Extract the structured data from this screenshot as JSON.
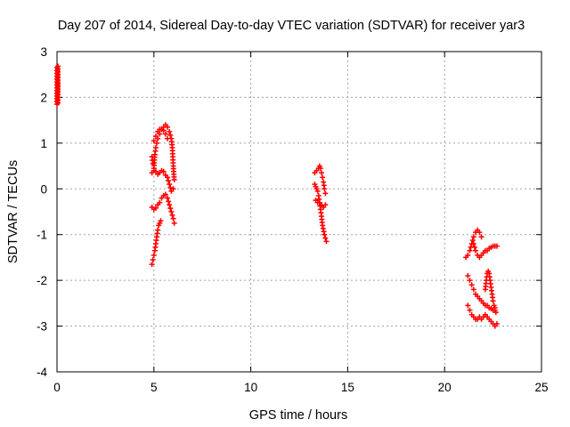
{
  "chart_data": {
    "type": "scatter",
    "title": "Day 207 of 2014, Sidereal Day-to-day VTEC variation (SDTVAR) for receiver yar3",
    "xlabel": "GPS time / hours",
    "ylabel": "SDTVAR / TECUs",
    "xlim": [
      0,
      25
    ],
    "ylim": [
      -4,
      3
    ],
    "xticks": [
      "0",
      "5",
      "10",
      "15",
      "20",
      "25"
    ],
    "yticks": [
      "-4",
      "-3",
      "-2",
      "-1",
      "0",
      "1",
      "2",
      "3"
    ],
    "grid": true,
    "marker": "+",
    "series_color": "#ff0000",
    "series": [
      {
        "x": [
          0.0,
          0.0,
          0.0,
          0.05,
          0.05,
          0.05
        ],
        "y": [
          2.65,
          2.15,
          1.85,
          2.68,
          2.18,
          1.88
        ]
      },
      {
        "x": [
          4.9,
          4.95,
          5.0,
          5.05,
          5.1,
          5.15,
          5.2,
          5.25,
          5.3,
          5.35
        ],
        "y": [
          -1.65,
          -1.55,
          -1.45,
          -1.35,
          -1.2,
          -1.05,
          -0.9,
          -0.8,
          -0.75,
          -0.7
        ]
      },
      {
        "x": [
          4.9,
          5.0,
          5.1,
          5.2,
          5.3,
          5.4,
          5.5,
          5.6,
          5.7,
          5.8,
          5.9,
          6.0,
          6.05
        ],
        "y": [
          -0.4,
          -0.45,
          -0.42,
          -0.35,
          -0.3,
          -0.2,
          -0.15,
          -0.12,
          -0.2,
          -0.35,
          -0.5,
          -0.65,
          -0.75
        ]
      },
      {
        "x": [
          4.9,
          5.0,
          5.1,
          5.2,
          5.3,
          5.4,
          5.5,
          5.6,
          5.7,
          5.8,
          5.9,
          6.0
        ],
        "y": [
          0.35,
          0.4,
          0.38,
          0.32,
          0.35,
          0.4,
          0.38,
          0.3,
          0.25,
          0.1,
          -0.05,
          0.0
        ]
      },
      {
        "x": [
          4.9,
          4.95,
          5.0,
          5.05,
          5.1,
          5.15,
          5.2,
          5.3,
          5.4,
          5.5,
          5.6,
          5.7,
          5.8,
          5.9,
          5.95,
          6.0,
          6.05
        ],
        "y": [
          0.7,
          0.55,
          0.45,
          0.75,
          0.9,
          1.0,
          1.1,
          1.2,
          1.3,
          1.35,
          1.4,
          1.35,
          1.25,
          1.1,
          0.9,
          0.5,
          0.2
        ]
      },
      {
        "x": [
          5.0,
          5.1,
          5.2,
          5.3,
          5.4,
          5.5,
          5.6,
          5.7
        ],
        "y": [
          1.05,
          1.15,
          1.25,
          1.3,
          1.3,
          1.28,
          1.2,
          1.1
        ]
      },
      {
        "x": [
          13.3,
          13.4,
          13.5,
          13.55,
          13.6,
          13.65,
          13.7,
          13.75,
          13.8,
          13.85
        ],
        "y": [
          0.35,
          0.4,
          0.45,
          0.5,
          0.45,
          0.35,
          0.25,
          0.15,
          0.0,
          -0.1
        ]
      },
      {
        "x": [
          13.3,
          13.35,
          13.4,
          13.45,
          13.5,
          13.55,
          13.6,
          13.65,
          13.7,
          13.8,
          13.9
        ],
        "y": [
          0.1,
          0.05,
          0.0,
          -0.05,
          -0.15,
          -0.3,
          -0.45,
          -0.6,
          -0.8,
          -1.0,
          -1.15
        ]
      },
      {
        "x": [
          13.35,
          13.45,
          13.55,
          13.65,
          13.75,
          13.85
        ],
        "y": [
          -0.25,
          -0.3,
          -0.3,
          -0.35,
          -0.4,
          -0.35
        ]
      },
      {
        "x": [
          21.1,
          21.2,
          21.3,
          21.4,
          21.5,
          21.6,
          21.7,
          21.8,
          21.9
        ],
        "y": [
          -1.5,
          -1.45,
          -1.35,
          -1.2,
          -1.05,
          -0.95,
          -0.9,
          -0.95,
          -1.05
        ]
      },
      {
        "x": [
          21.5,
          21.6,
          21.7,
          21.8,
          21.9,
          22.0,
          22.1,
          22.2,
          22.3,
          22.4,
          22.5,
          22.6,
          22.7
        ],
        "y": [
          -1.2,
          -1.35,
          -1.45,
          -1.5,
          -1.45,
          -1.4,
          -1.35,
          -1.35,
          -1.3,
          -1.28,
          -1.25,
          -1.25,
          -1.25
        ]
      },
      {
        "x": [
          21.2,
          21.3,
          21.4,
          21.5,
          21.6,
          21.7,
          21.8,
          21.9,
          22.0,
          22.1,
          22.2,
          22.3,
          22.4,
          22.5,
          22.6
        ],
        "y": [
          -1.9,
          -2.0,
          -2.1,
          -2.2,
          -2.3,
          -2.35,
          -2.4,
          -2.45,
          -2.5,
          -2.55,
          -2.55,
          -2.6,
          -2.62,
          -2.65,
          -2.6
        ]
      },
      {
        "x": [
          21.2,
          21.3,
          21.4,
          21.5,
          21.6,
          21.7,
          21.8,
          21.9,
          22.0,
          22.1,
          22.2,
          22.3,
          22.4,
          22.5,
          22.6,
          22.7
        ],
        "y": [
          -2.55,
          -2.65,
          -2.75,
          -2.8,
          -2.85,
          -2.85,
          -2.8,
          -2.85,
          -2.8,
          -2.75,
          -2.8,
          -2.85,
          -2.9,
          -2.95,
          -3.0,
          -2.95
        ]
      },
      {
        "x": [
          22.1,
          22.15,
          22.2,
          22.25,
          22.3,
          22.35,
          22.4,
          22.45,
          22.5,
          22.55,
          22.6,
          22.65
        ],
        "y": [
          -2.2,
          -2.0,
          -1.85,
          -1.8,
          -1.85,
          -2.0,
          -2.15,
          -2.3,
          -2.45,
          -2.55,
          -2.65,
          -2.7
        ]
      }
    ]
  }
}
